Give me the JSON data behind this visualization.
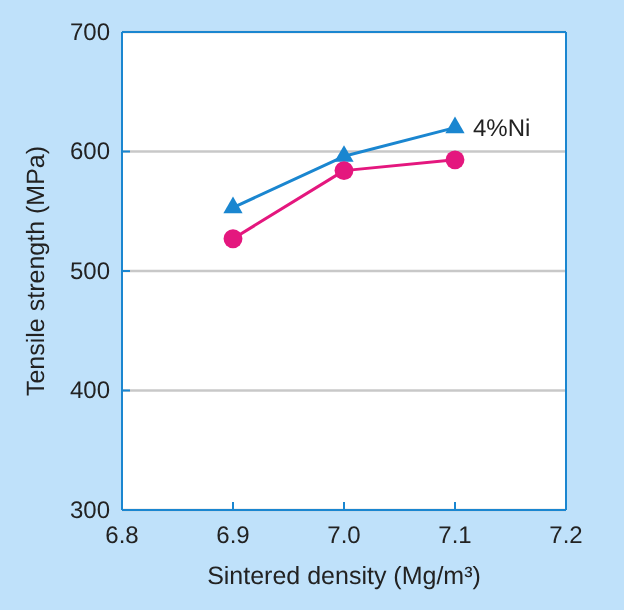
{
  "chart_data": {
    "type": "line",
    "xlabel": "Sintered density (Mg/m³)",
    "ylabel": "Tensile strength (MPa)",
    "x": [
      6.9,
      7.0,
      7.1
    ],
    "series": [
      {
        "name": "4%Ni",
        "color": "#1a86d0",
        "values": [
          553,
          596,
          620
        ],
        "marker": "triangle"
      },
      {
        "color": "#e4177e",
        "values": [
          527,
          584,
          593
        ],
        "marker": "circle"
      }
    ],
    "xlim": [
      6.8,
      7.2
    ],
    "xticks": [
      6.8,
      {
        "value": 6.9,
        "label": "6.9"
      },
      {
        "value": 7.0,
        "label": "7.0"
      },
      {
        "value": 7.1,
        "label": "7.1"
      },
      7.2
    ],
    "ylim": [
      300,
      700
    ],
    "yticks": [
      300,
      400,
      500,
      600,
      700
    ],
    "grid": "y",
    "line_style": "solid"
  }
}
